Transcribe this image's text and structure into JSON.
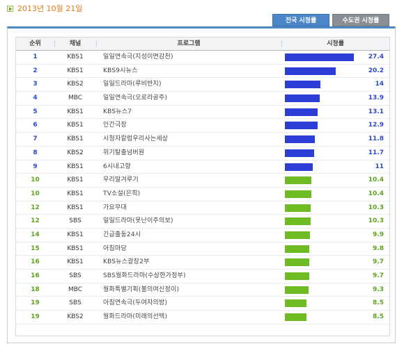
{
  "date": "2013년 10월 21일",
  "tabs": {
    "national": "전국 시청률",
    "capital": "수도권 시청률"
  },
  "headers": {
    "rank": "순위",
    "channel": "채널",
    "program": "프로그램",
    "rating": "시청률"
  },
  "colors": {
    "top_bar": "#2c3ed6",
    "other_bar": "#6fbb24",
    "tab_active": "#4a86c8",
    "date_text": "#e07b14"
  },
  "max_rating": 27.4,
  "rows": [
    {
      "rank": "1",
      "channel": "KBS1",
      "program": "일일연속극(지성이면감천)",
      "rating": "27.4",
      "tier": "blue"
    },
    {
      "rank": "2",
      "channel": "KBS1",
      "program": "KBS9시뉴스",
      "rating": "20.2",
      "tier": "blue"
    },
    {
      "rank": "3",
      "channel": "KBS2",
      "program": "일일드라마(루비반지)",
      "rating": "14",
      "tier": "blue"
    },
    {
      "rank": "4",
      "channel": "MBC",
      "program": "일일연속극(오로라공주)",
      "rating": "13.9",
      "tier": "blue"
    },
    {
      "rank": "5",
      "channel": "KBS1",
      "program": "KBS뉴스7",
      "rating": "13.1",
      "tier": "blue"
    },
    {
      "rank": "6",
      "channel": "KBS1",
      "program": "인간극장",
      "rating": "12.9",
      "tier": "blue"
    },
    {
      "rank": "7",
      "channel": "KBS1",
      "program": "시청자칼럼우리사는세상",
      "rating": "11.8",
      "tier": "blue"
    },
    {
      "rank": "8",
      "channel": "KBS2",
      "program": "위기탈출넘버원",
      "rating": "11.7",
      "tier": "blue"
    },
    {
      "rank": "9",
      "channel": "KBS1",
      "program": "6시내고향",
      "rating": "11",
      "tier": "blue"
    },
    {
      "rank": "10",
      "channel": "KBS1",
      "program": "우리말겨루기",
      "rating": "10.4",
      "tier": "green"
    },
    {
      "rank": "10",
      "channel": "KBS1",
      "program": "TV소설(은희)",
      "rating": "10.4",
      "tier": "green"
    },
    {
      "rank": "12",
      "channel": "KBS1",
      "program": "가요무대",
      "rating": "10.3",
      "tier": "green"
    },
    {
      "rank": "12",
      "channel": "SBS",
      "program": "일일드라마(못난이주의보)",
      "rating": "10.3",
      "tier": "green"
    },
    {
      "rank": "14",
      "channel": "KBS1",
      "program": "긴급출동24시",
      "rating": "9.9",
      "tier": "green"
    },
    {
      "rank": "15",
      "channel": "KBS1",
      "program": "아침마당",
      "rating": "9.8",
      "tier": "green"
    },
    {
      "rank": "16",
      "channel": "KBS1",
      "program": "KBS뉴스광장2부",
      "rating": "9.7",
      "tier": "green"
    },
    {
      "rank": "16",
      "channel": "SBS",
      "program": "SBS월화드라마(수상한가정부)",
      "rating": "9.7",
      "tier": "green"
    },
    {
      "rank": "18",
      "channel": "MBC",
      "program": "월화특별기획(불의여신정이)",
      "rating": "9.3",
      "tier": "green"
    },
    {
      "rank": "19",
      "channel": "SBS",
      "program": "아침연속극(두여자의방)",
      "rating": "8.5",
      "tier": "green"
    },
    {
      "rank": "19",
      "channel": "KBS2",
      "program": "월화드라마(미래의선택)",
      "rating": "8.5",
      "tier": "green"
    }
  ]
}
